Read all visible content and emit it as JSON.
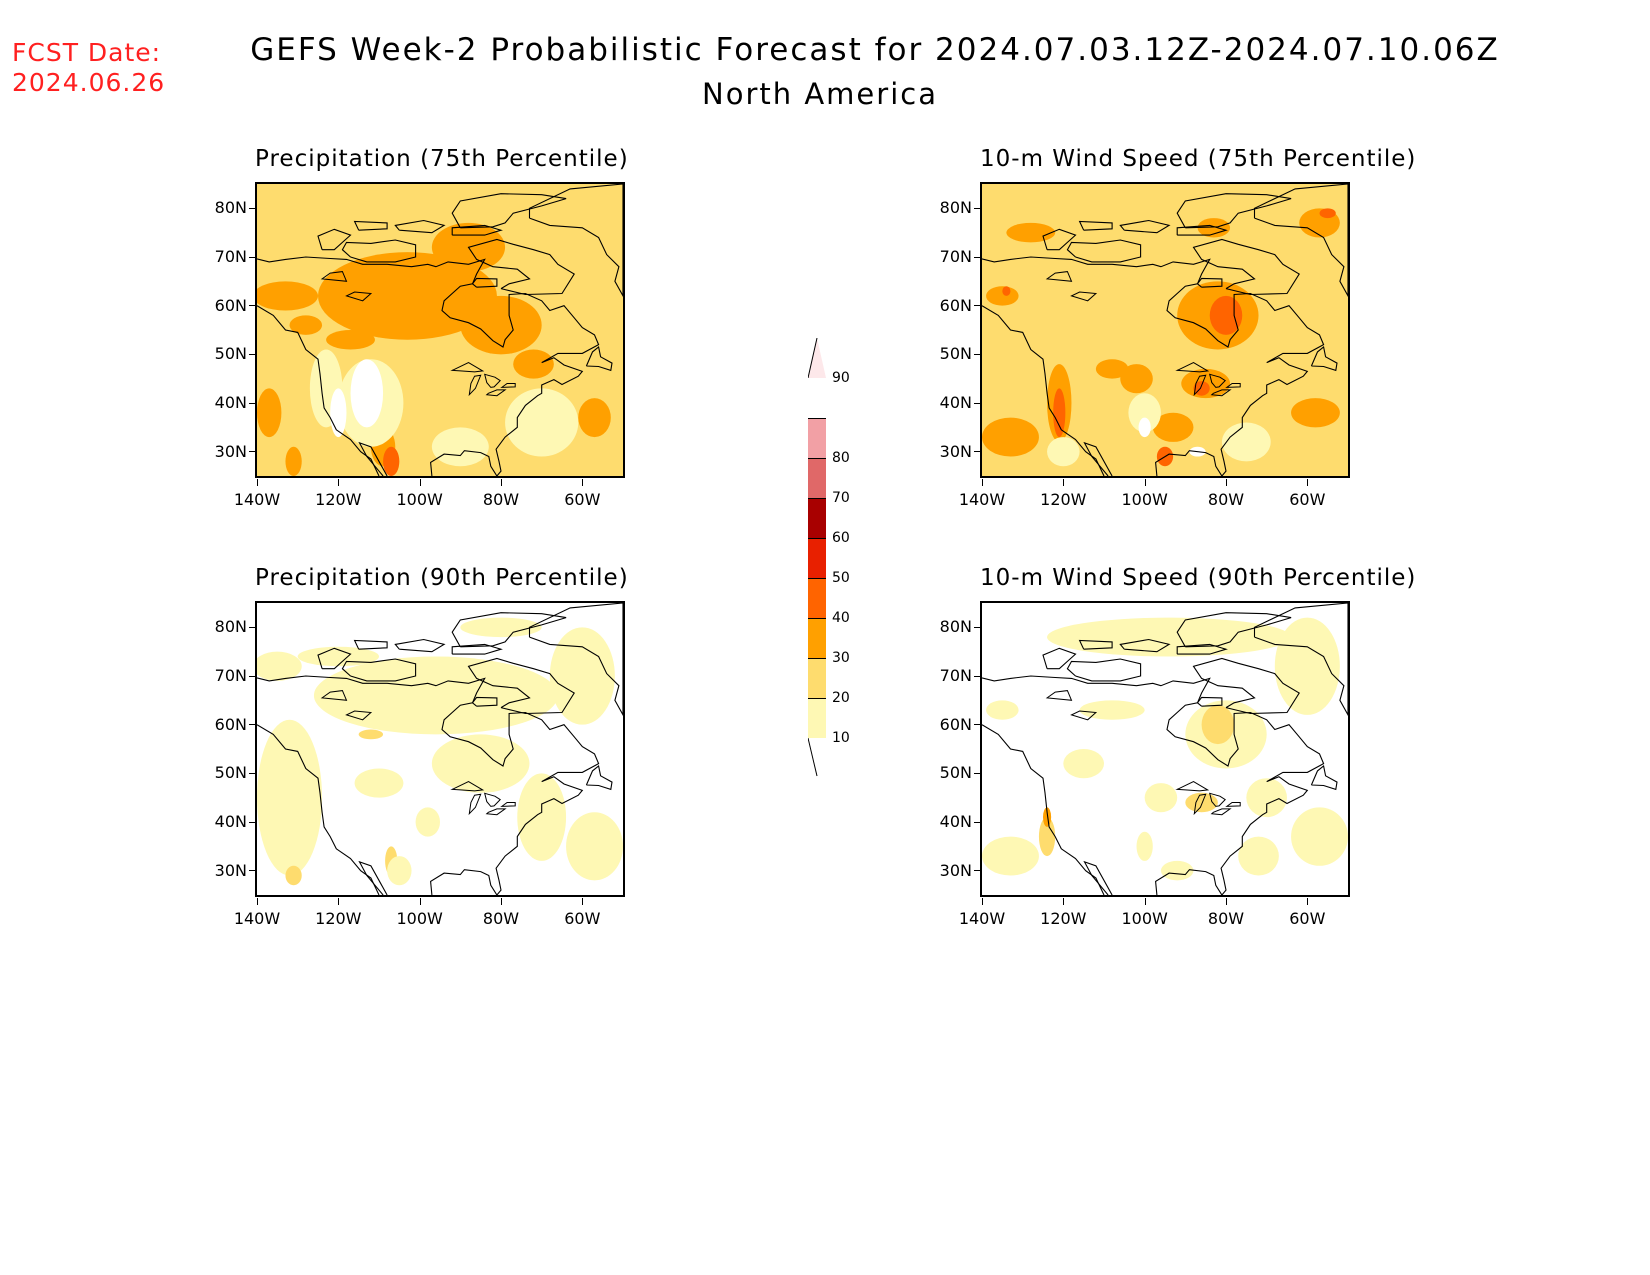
{
  "header": {
    "fcst_label": "FCST Date:",
    "fcst_date": "2024.06.26",
    "title": "GEFS Week-2 Probabilistic Forecast for 2024.07.03.12Z-2024.07.10.06Z",
    "subtitle": "North America",
    "fcst_color": "#ff2020"
  },
  "panels": [
    {
      "title": "Precipitation (75th Percentile)"
    },
    {
      "title": "10-m Wind Speed (75th Percentile)"
    },
    {
      "title": "Precipitation (90th Percentile)"
    },
    {
      "title": "10-m Wind Speed (90th Percentile)"
    }
  ],
  "axes": {
    "lat_labels": [
      "80N",
      "70N",
      "60N",
      "50N",
      "40N",
      "30N"
    ],
    "lon_labels": [
      "140W",
      "120W",
      "100W",
      "80W",
      "60W"
    ],
    "lat_range": [
      25,
      85
    ],
    "lon_range": [
      -140,
      -50
    ]
  },
  "colorbar": {
    "labels": [
      "90",
      "80",
      "70",
      "60",
      "50",
      "40",
      "30",
      "20",
      "10"
    ],
    "colors": [
      "#fde8ea",
      "#f2a0a5",
      "#e06868",
      "#a80000",
      "#e82000",
      "#ff6400",
      "#ffa000",
      "#fedc6e",
      "#fef8b4"
    ]
  }
}
